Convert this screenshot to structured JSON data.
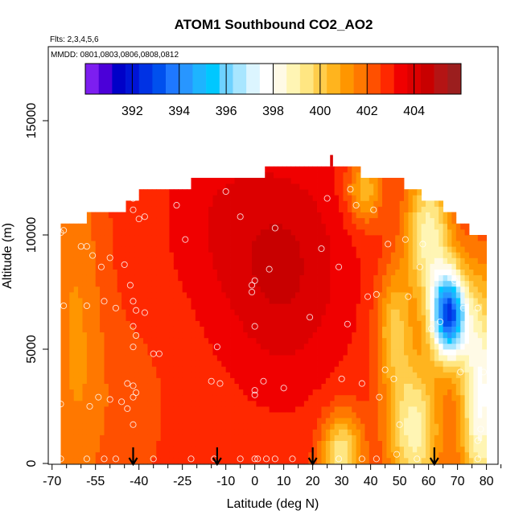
{
  "chart_data": {
    "type": "heatmap",
    "title": "ATOM1 Southbound CO2_AO2",
    "subtitle_flights": "Flts: 2,3,4,5,6",
    "subtitle_dates": "MMDD: 0801,0803,0806,0808,0812",
    "xlabel": "Latitude (deg N)",
    "ylabel": "Altitude (m)",
    "xlim": [
      -70,
      85
    ],
    "ylim": [
      0,
      17500
    ],
    "x_ticks": [
      -70,
      -55,
      -40,
      -25,
      -10,
      0,
      10,
      20,
      30,
      40,
      50,
      60,
      70,
      80
    ],
    "x_tick_labels": [
      "-70",
      "-55",
      "-40",
      "-25",
      "-10",
      "0",
      "10",
      "20",
      "30",
      "40",
      "50",
      "60",
      "70",
      "80"
    ],
    "x_minor_ticks": [
      -65,
      -60,
      -50,
      -45,
      -35,
      -30,
      -20,
      -15,
      -5,
      5,
      15,
      25,
      35,
      45,
      55,
      65,
      75,
      85
    ],
    "y_ticks": [
      0,
      5000,
      10000,
      15000
    ],
    "y_tick_labels": [
      "0",
      "5000",
      "10000",
      "15000"
    ],
    "colorbar": {
      "range": [
        390,
        406
      ],
      "tick_values": [
        392,
        394,
        396,
        398,
        400,
        402,
        404
      ],
      "tick_labels": [
        "392",
        "394",
        "396",
        "398",
        "400",
        "402",
        "404"
      ],
      "colors": [
        "#7d1ef0",
        "#4b00d8",
        "#0000c8",
        "#0014d6",
        "#0032e4",
        "#0050ee",
        "#1e78ff",
        "#2896ff",
        "#1eb4ff",
        "#00c8ff",
        "#6ed2ff",
        "#a8e6ff",
        "#dcf5ff",
        "#ffffff",
        "#fffae6",
        "#fff5b4",
        "#ffe682",
        "#ffcd4b",
        "#ffb41e",
        "#ff9600",
        "#ff7800",
        "#ff5000",
        "#ff2800",
        "#f00000",
        "#dc0000",
        "#c80000",
        "#b41414",
        "#9b1e1e"
      ]
    },
    "field": {
      "description": "CO2 mixing ratio (ppm) curtain, latitude vs altitude",
      "base_value": 402.8,
      "centers": [
        {
          "lat": 10,
          "alt": 8500,
          "amp": 1.6,
          "sx": 22,
          "sy": 5000
        },
        {
          "lat": -15,
          "alt": 11000,
          "amp": 0.6,
          "sx": 18,
          "sy": 4000
        },
        {
          "lat": -62,
          "alt": 6000,
          "amp": -1.4,
          "sx": 10,
          "sy": 9000
        },
        {
          "lat": -45,
          "alt": 2500,
          "amp": -0.5,
          "sx": 15,
          "sy": 4000
        },
        {
          "lat": 30,
          "alt": 500,
          "amp": -3.6,
          "sx": 7,
          "sy": 1700
        },
        {
          "lat": 55,
          "alt": 1500,
          "amp": -4.0,
          "sx": 9,
          "sy": 3200
        },
        {
          "lat": 67,
          "alt": 6500,
          "amp": -9.5,
          "sx": 6,
          "sy": 1900
        },
        {
          "lat": 60,
          "alt": 10000,
          "amp": -4.0,
          "sx": 8,
          "sy": 3000
        },
        {
          "lat": 78,
          "alt": 3000,
          "amp": -5.0,
          "sx": 7,
          "sy": 5000
        },
        {
          "lat": 48,
          "alt": 6000,
          "amp": -2.5,
          "sx": 6,
          "sy": 2500
        },
        {
          "lat": 38,
          "alt": 12000,
          "amp": -2.5,
          "sx": 6,
          "sy": 1500
        }
      ],
      "top_boundary": [
        {
          "lat": -67,
          "alt": 10500
        },
        {
          "lat": -62,
          "alt": 10500
        },
        {
          "lat": -58,
          "alt": 11000
        },
        {
          "lat": -45,
          "alt": 11500
        },
        {
          "lat": -40,
          "alt": 12000
        },
        {
          "lat": -25,
          "alt": 12000
        },
        {
          "lat": -22,
          "alt": 12500
        },
        {
          "lat": 2,
          "alt": 12500
        },
        {
          "lat": 3,
          "alt": 13000
        },
        {
          "lat": 36,
          "alt": 13000
        },
        {
          "lat": 37,
          "alt": 12500
        },
        {
          "lat": 45,
          "alt": 12500
        },
        {
          "lat": 52,
          "alt": 12000
        },
        {
          "lat": 58,
          "alt": 11500
        },
        {
          "lat": 65,
          "alt": 11000
        },
        {
          "lat": 70,
          "alt": 10500
        },
        {
          "lat": 74,
          "alt": 10000
        },
        {
          "lat": 79,
          "alt": 10000
        }
      ],
      "lat_min": -67,
      "lat_max": 79,
      "spike": {
        "lat": 26.5,
        "alt_from": 13000,
        "alt_to": 13500,
        "value": 404
      }
    },
    "arrows_lat": [
      -42,
      -13,
      20,
      62
    ],
    "sample_points": [
      {
        "lat": -67,
        "alt": 10100
      },
      {
        "lat": -66,
        "alt": 10200
      },
      {
        "lat": -60,
        "alt": 9500
      },
      {
        "lat": -58,
        "alt": 9500
      },
      {
        "lat": -56,
        "alt": 9100
      },
      {
        "lat": -53,
        "alt": 8600
      },
      {
        "lat": -50,
        "alt": 9000
      },
      {
        "lat": -42,
        "alt": 11600
      },
      {
        "lat": -42,
        "alt": 11100
      },
      {
        "lat": -40,
        "alt": 10700
      },
      {
        "lat": -38,
        "alt": 10800
      },
      {
        "lat": -45,
        "alt": 8700
      },
      {
        "lat": -43,
        "alt": 7800
      },
      {
        "lat": -42,
        "alt": 7100
      },
      {
        "lat": -41,
        "alt": 6700
      },
      {
        "lat": -38,
        "alt": 6600
      },
      {
        "lat": -42,
        "alt": 6000
      },
      {
        "lat": -41,
        "alt": 5600
      },
      {
        "lat": -42,
        "alt": 5100
      },
      {
        "lat": -66,
        "alt": 6900
      },
      {
        "lat": -58,
        "alt": 6900
      },
      {
        "lat": -52,
        "alt": 7100
      },
      {
        "lat": -48,
        "alt": 6800
      },
      {
        "lat": -35,
        "alt": 4800
      },
      {
        "lat": -33,
        "alt": 4800
      },
      {
        "lat": -42,
        "alt": 3400
      },
      {
        "lat": -44,
        "alt": 3500
      },
      {
        "lat": -41,
        "alt": 3100
      },
      {
        "lat": -42,
        "alt": 2900
      },
      {
        "lat": -46,
        "alt": 2700
      },
      {
        "lat": -44,
        "alt": 2400
      },
      {
        "lat": -54,
        "alt": 2900
      },
      {
        "lat": -50,
        "alt": 2800
      },
      {
        "lat": -67,
        "alt": 2600
      },
      {
        "lat": -57,
        "alt": 2500
      },
      {
        "lat": -42,
        "alt": 1700
      },
      {
        "lat": -27,
        "alt": 11300
      },
      {
        "lat": -24,
        "alt": 9800
      },
      {
        "lat": -10,
        "alt": 11900
      },
      {
        "lat": -5,
        "alt": 10800
      },
      {
        "lat": 7,
        "alt": 10300
      },
      {
        "lat": 25,
        "alt": 11600
      },
      {
        "lat": 33,
        "alt": 12000
      },
      {
        "lat": 35,
        "alt": 11300
      },
      {
        "lat": 41,
        "alt": 11100
      },
      {
        "lat": 46,
        "alt": 9600
      },
      {
        "lat": 52,
        "alt": 9800
      },
      {
        "lat": 58,
        "alt": 9600
      },
      {
        "lat": 23,
        "alt": 9400
      },
      {
        "lat": 29,
        "alt": 8600
      },
      {
        "lat": 5,
        "alt": 8500
      },
      {
        "lat": -1,
        "alt": 7800
      },
      {
        "lat": 0,
        "alt": 8000
      },
      {
        "lat": -1,
        "alt": 7500
      },
      {
        "lat": 0,
        "alt": 6000
      },
      {
        "lat": 19,
        "alt": 6400
      },
      {
        "lat": -13,
        "alt": 5100
      },
      {
        "lat": 32,
        "alt": 6100
      },
      {
        "lat": 39,
        "alt": 7300
      },
      {
        "lat": 42,
        "alt": 7400
      },
      {
        "lat": 53,
        "alt": 7300
      },
      {
        "lat": 57,
        "alt": 8600
      },
      {
        "lat": 69,
        "alt": 8000
      },
      {
        "lat": 77,
        "alt": 6800
      },
      {
        "lat": 72,
        "alt": 6800
      },
      {
        "lat": 64,
        "alt": 6200
      },
      {
        "lat": 61,
        "alt": 5900
      },
      {
        "lat": 71,
        "alt": 4000
      },
      {
        "lat": 79,
        "alt": 4000
      },
      {
        "lat": -15,
        "alt": 3600
      },
      {
        "lat": -12,
        "alt": 3500
      },
      {
        "lat": 3,
        "alt": 3600
      },
      {
        "lat": 0,
        "alt": 3200
      },
      {
        "lat": 0,
        "alt": 3000
      },
      {
        "lat": 10,
        "alt": 3300
      },
      {
        "lat": 30,
        "alt": 3700
      },
      {
        "lat": 37,
        "alt": 3500
      },
      {
        "lat": 45,
        "alt": 4100
      },
      {
        "lat": 48,
        "alt": 3700
      },
      {
        "lat": 43,
        "alt": 2900
      },
      {
        "lat": 50,
        "alt": 1700
      },
      {
        "lat": 78,
        "alt": 1500
      },
      {
        "lat": 77,
        "alt": 1000
      },
      {
        "lat": -67,
        "alt": 200
      },
      {
        "lat": -58,
        "alt": 200
      },
      {
        "lat": -52,
        "alt": 200
      },
      {
        "lat": -48,
        "alt": 200
      },
      {
        "lat": -35,
        "alt": 200
      },
      {
        "lat": -22,
        "alt": 200
      },
      {
        "lat": -14,
        "alt": 200
      },
      {
        "lat": -5,
        "alt": 200
      },
      {
        "lat": 0,
        "alt": 200
      },
      {
        "lat": 1,
        "alt": 200
      },
      {
        "lat": 4,
        "alt": 200
      },
      {
        "lat": 7,
        "alt": 200
      },
      {
        "lat": 13,
        "alt": 200
      },
      {
        "lat": 29,
        "alt": 200
      },
      {
        "lat": 37,
        "alt": 200
      },
      {
        "lat": 42,
        "alt": 200
      },
      {
        "lat": 49,
        "alt": 400
      },
      {
        "lat": 56,
        "alt": 200
      },
      {
        "lat": 77,
        "alt": 200
      }
    ]
  }
}
